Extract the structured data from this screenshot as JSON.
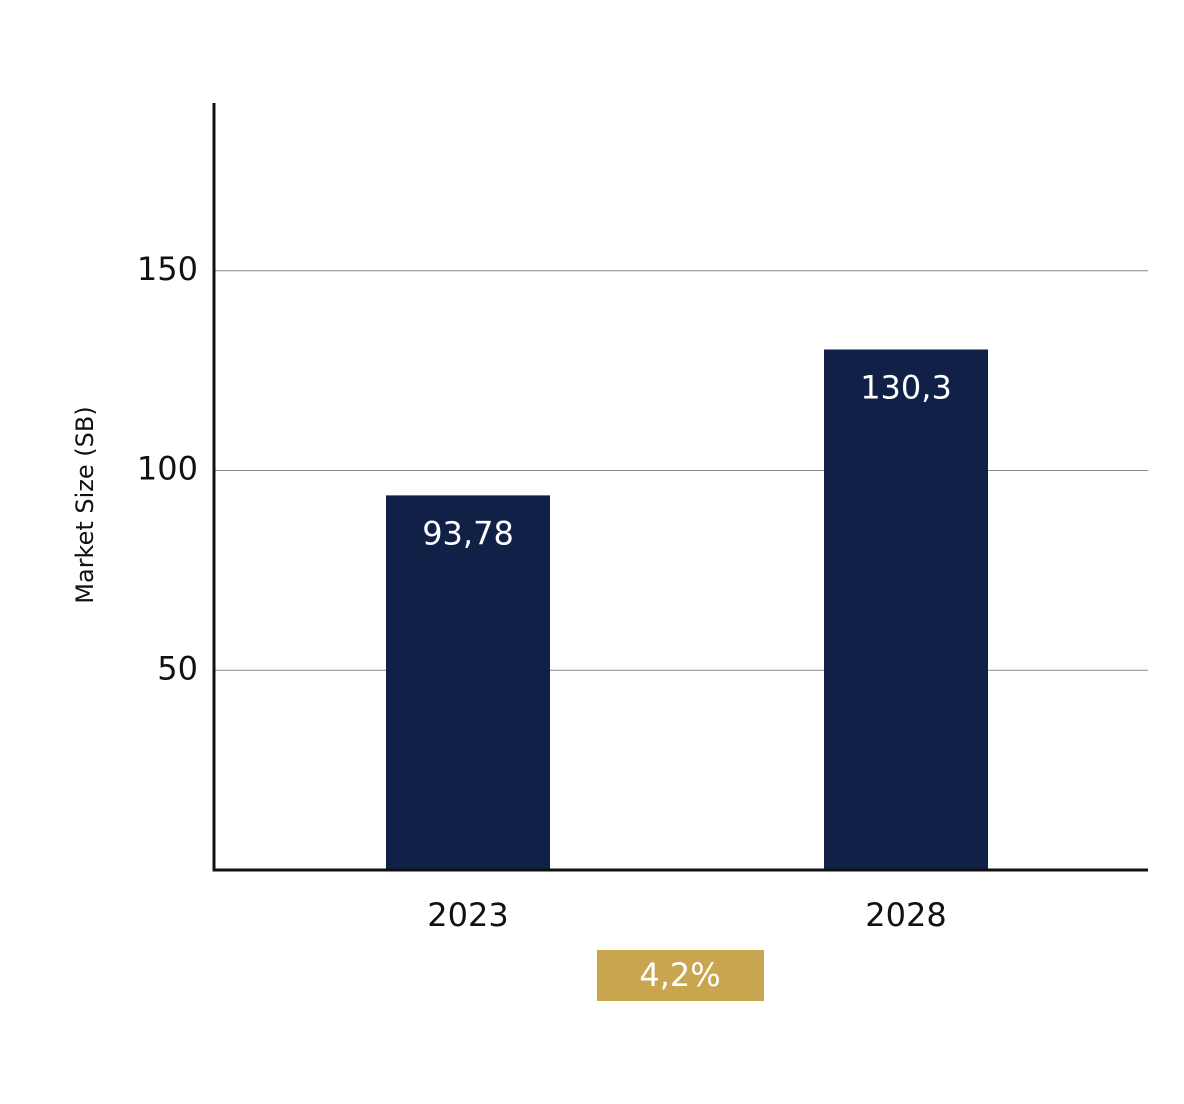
{
  "chart_data": {
    "type": "bar",
    "y_label": "Market Size (SB)",
    "categories": [
      "2023",
      "2028"
    ],
    "values": [
      93.78,
      130.3
    ],
    "value_labels": [
      "93,78",
      "130,3"
    ],
    "color": "#102047",
    "ylim": [
      0,
      192
    ],
    "yticks": [
      50,
      100,
      150
    ],
    "grid": true,
    "annotation": "4,2%",
    "annotation_color": "#c9a550"
  }
}
